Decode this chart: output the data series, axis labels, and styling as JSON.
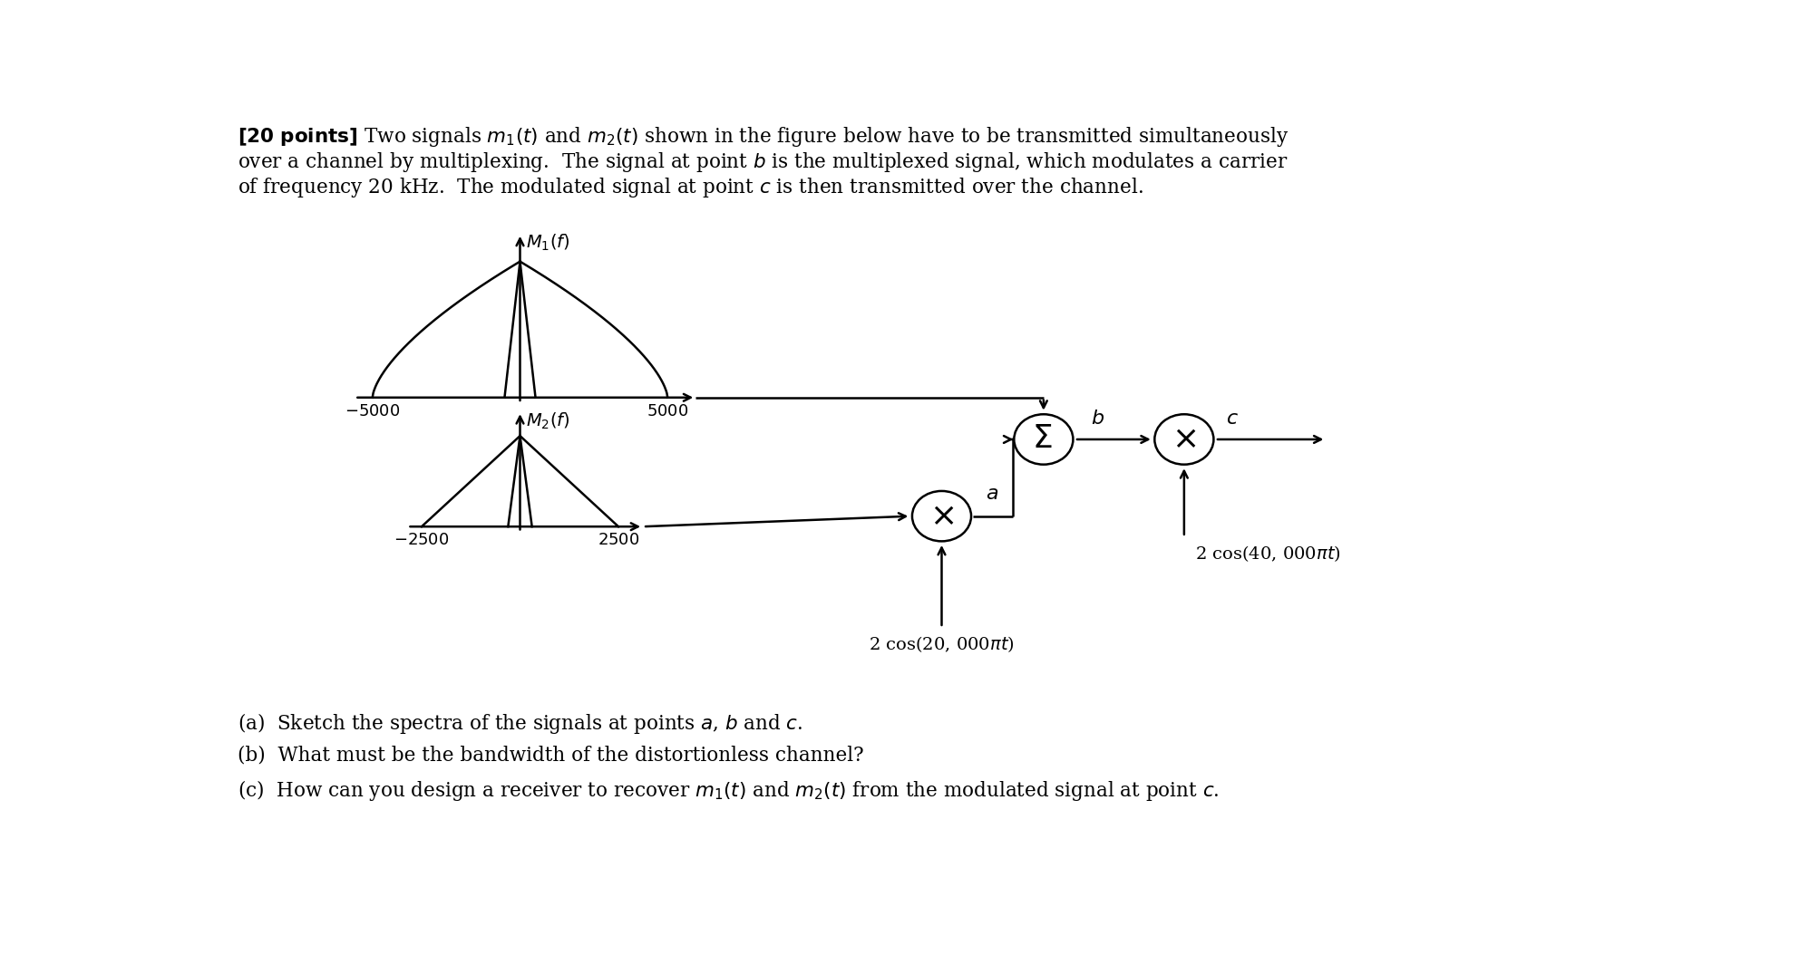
{
  "bg_color": "#ffffff",
  "m1_label": "$M_1(f)$",
  "m2_label": "$M_2(f)$",
  "m1_tick_neg": "$-5000$",
  "m1_tick_pos": "$5000$",
  "m2_tick_neg": "$-2500$",
  "m2_tick_pos": "$2500$",
  "cos1_label": "2 cos(20, 000$\\pi t$)",
  "cos2_label": "2 cos(40, 000$\\pi t$)",
  "point_a": "$a$",
  "point_b": "$b$",
  "point_c": "$c$",
  "title_line1": "$\\mathbf{[20\\ points]}$ Two signals $m_1(t)$ and $m_2(t)$ shown in the figure below have to be transmitted simultaneously",
  "title_line2": "over a channel by multiplexing.  The signal at point $b$ is the multiplexed signal, which modulates a carrier",
  "title_line3": "of frequency 20 kHz.  The modulated signal at point $c$ is then transmitted over the channel.",
  "qa": "(a)  Sketch the spectra of the signals at points $a$, $b$ and $c$.",
  "qb": "(b)  What must be the bandwidth of the distortionless channel?",
  "qc": "(c)  How can you design a receiver to recover $m_1(t)$ and $m_2(t)$ from the modulated signal at point $c$."
}
